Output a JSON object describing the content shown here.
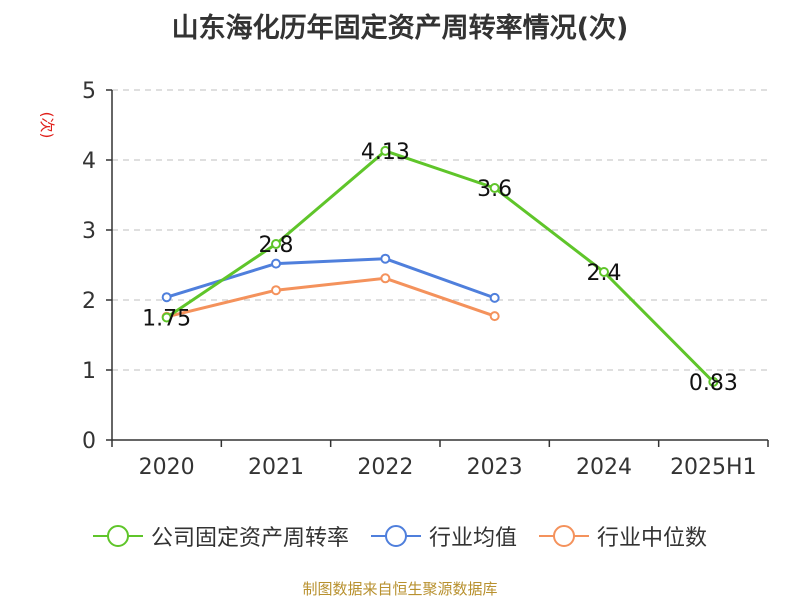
{
  "chart_data": {
    "type": "line",
    "title": "山东海化历年固定资产周转率情况(次)",
    "ylabel": "(次)",
    "categories": [
      "2020",
      "2021",
      "2022",
      "2023",
      "2024",
      "2025H1"
    ],
    "ylim": [
      0,
      5
    ],
    "yticks": [
      0,
      1,
      2,
      3,
      4,
      5
    ],
    "grid": true,
    "legend_position": "bottom",
    "series": [
      {
        "name": "公司固定资产周转率",
        "color": "#5fc52a",
        "values": [
          1.75,
          2.8,
          4.13,
          3.6,
          2.4,
          0.83
        ],
        "data_labels": [
          "1.75",
          "2.8",
          "4.13",
          "3.6",
          "2.4",
          "0.83"
        ]
      },
      {
        "name": "行业均值",
        "color": "#4f7fdc",
        "values": [
          2.04,
          2.52,
          2.59,
          2.03,
          null,
          null
        ]
      },
      {
        "name": "行业中位数",
        "color": "#f4925c",
        "values": [
          1.76,
          2.14,
          2.31,
          1.77,
          null,
          null
        ]
      }
    ]
  },
  "footer": {
    "source": "制图数据来自恒生聚源数据库"
  }
}
